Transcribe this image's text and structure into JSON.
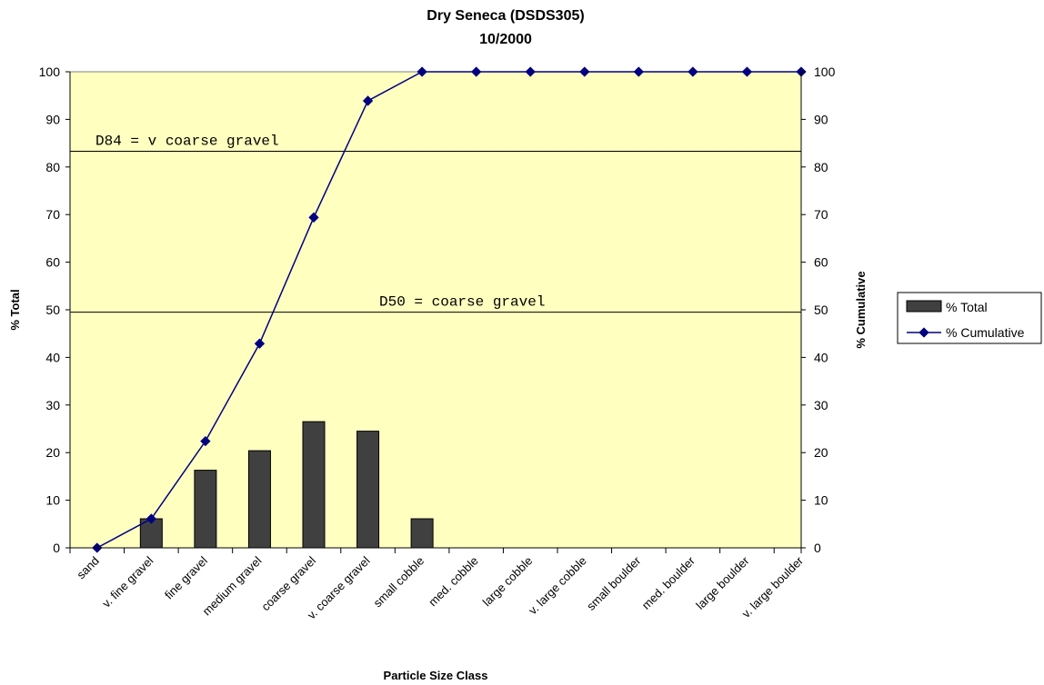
{
  "chart_data": {
    "type": "bar",
    "title": "Dry Seneca (DSDS305)",
    "subtitle": "10/2000",
    "xlabel": "Particle Size Class",
    "ylabel_left": "% Total",
    "ylabel_right": "% Cumulative",
    "ylim": [
      0,
      100
    ],
    "yticks": [
      0,
      10,
      20,
      30,
      40,
      50,
      60,
      70,
      80,
      90,
      100
    ],
    "categories": [
      "sand",
      "v. fine gravel",
      "fine gravel",
      "medium gravel",
      "coarse gravel",
      "v. coarse gravel",
      "small cobble",
      "med. cobble",
      "large cobble",
      "v. large cobble",
      "small boulder",
      "med. boulder",
      "large boulder",
      "v. large boulder"
    ],
    "series": [
      {
        "name": "% Total",
        "type": "bar",
        "color": "#404040",
        "values": [
          0,
          6.1,
          16.3,
          20.4,
          26.5,
          24.5,
          6.1,
          0,
          0,
          0,
          0,
          0,
          0,
          0
        ]
      },
      {
        "name": "% Cumulative",
        "type": "line",
        "color": "#000080",
        "values": [
          0,
          6.1,
          22.4,
          42.9,
          69.4,
          93.9,
          100,
          100,
          100,
          100,
          100,
          100,
          100,
          100
        ]
      }
    ],
    "reference_lines": [
      {
        "value": 83.3,
        "label": "D84 = v coarse gravel"
      },
      {
        "value": 49.5,
        "label": "D50 = coarse gravel"
      }
    ],
    "plot_background": "#ffffc0",
    "grid": false,
    "legend_position": "right"
  }
}
